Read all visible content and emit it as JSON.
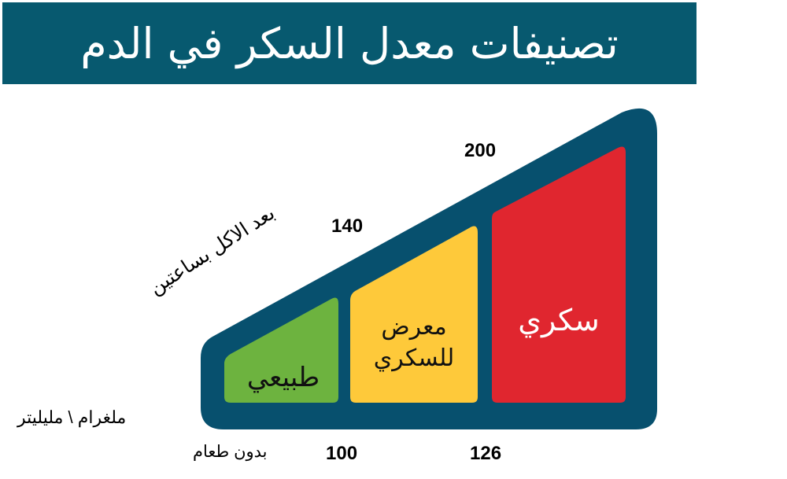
{
  "title": "تصنيفات معدل السكر في الدم",
  "categories": {
    "normal": "طبيعي",
    "prediabetes_line1": "معرض",
    "prediabetes_line2": "للسكري",
    "diabetes": "سكري"
  },
  "thresholds": {
    "fasting_normal_max": "100",
    "fasting_prediabetes_max": "126",
    "postmeal_normal_max": "140",
    "postmeal_prediabetes_max": "200"
  },
  "labels": {
    "after_meal": "بعد الاكل بساعتين",
    "fasting": "بدون طعام",
    "unit": "ملغرام \\ مليليتر"
  },
  "colors": {
    "banner": "#07596f",
    "frame": "#07506e",
    "normal": "#6db33f",
    "prediabetes": "#fec93a",
    "diabetes": "#e0262f"
  }
}
